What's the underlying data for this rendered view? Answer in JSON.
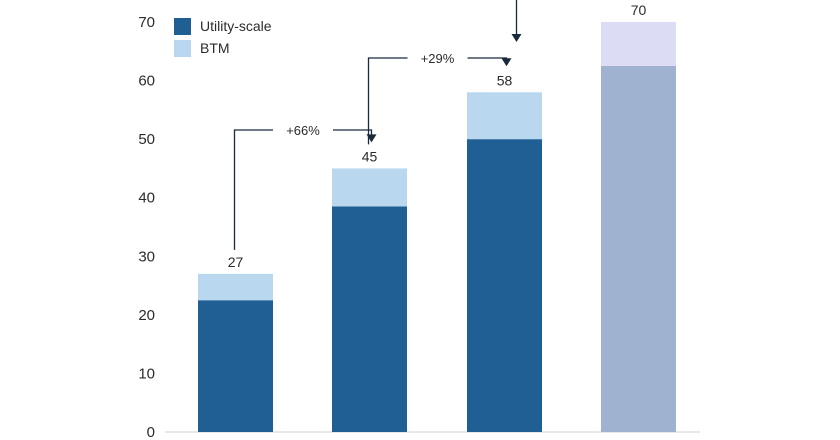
{
  "chart_data": {
    "type": "bar",
    "stacked": true,
    "title": "",
    "xlabel": "",
    "ylabel": "",
    "ylim": [
      0,
      70
    ],
    "yticks": [
      0,
      10,
      20,
      30,
      40,
      50,
      60,
      70
    ],
    "grid": false,
    "legend_position": "top-left",
    "categories": [
      "",
      "",
      "",
      ""
    ],
    "series": [
      {
        "name": "Utility-scale",
        "color": "#1f5f94",
        "values": [
          22.5,
          38.5,
          50,
          62.5
        ]
      },
      {
        "name": "BTM",
        "color": "#b9d8f0",
        "values": [
          4.5,
          6.5,
          8,
          7.5
        ]
      }
    ],
    "totals": [
      "27",
      "45",
      "58",
      "70"
    ],
    "projected_index": 3,
    "projected_colors": {
      "Utility-scale": "#9fb3d1",
      "BTM": "#dcdcf4"
    },
    "annotations": [
      {
        "label": "+66%",
        "from_index": 0,
        "to_index": 1
      },
      {
        "label": "+29%",
        "from_index": 1,
        "to_index": 2
      }
    ]
  }
}
